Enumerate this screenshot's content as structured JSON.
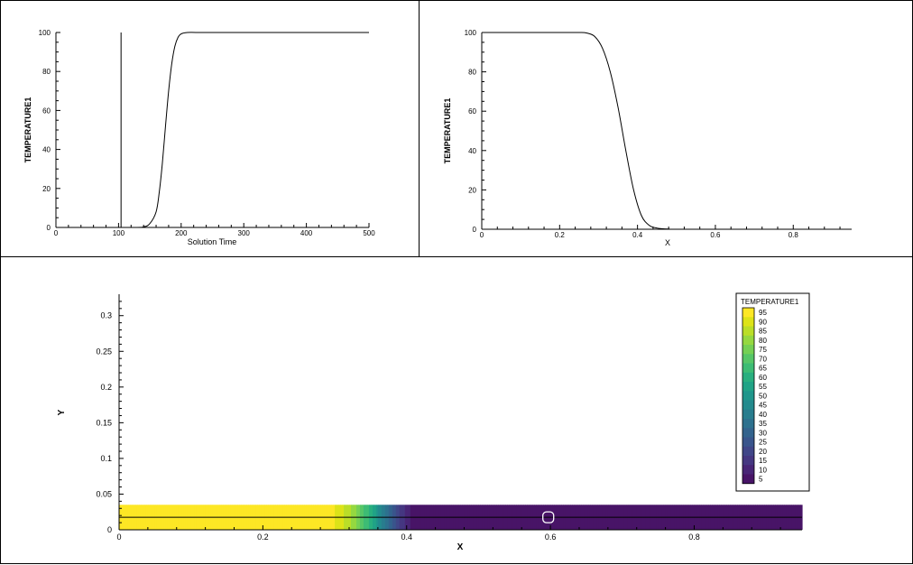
{
  "colors": {
    "line": "#000000",
    "background": "#ffffff"
  },
  "chart_data": [
    {
      "type": "line",
      "xlabel": "Solution Time",
      "ylabel": "TEMPERATURE1",
      "xlim": [
        0,
        500
      ],
      "ylim": [
        0,
        100
      ],
      "xticks": [
        0,
        100,
        200,
        300,
        400,
        500
      ],
      "yticks": [
        0,
        20,
        40,
        60,
        80,
        100
      ],
      "grid": false,
      "marker": {
        "label": "time-marker-line",
        "x": 104
      },
      "series": [
        {
          "x": [
            0,
            120,
            140,
            150,
            160,
            165,
            170,
            175,
            180,
            185,
            190,
            195,
            200,
            210,
            230,
            300,
            400,
            500
          ],
          "y": [
            0,
            0,
            0.3,
            2,
            8,
            18,
            33,
            52,
            70,
            84,
            93,
            97.5,
            99.3,
            100,
            100,
            100,
            100,
            100
          ]
        }
      ]
    },
    {
      "type": "line",
      "xlabel": "X",
      "ylabel": "TEMPERATURE1",
      "xlim": [
        0,
        0.95
      ],
      "ylim": [
        0,
        100
      ],
      "xticks": [
        0,
        0.2,
        0.4,
        0.6,
        0.8
      ],
      "xtick_labels": [
        "0",
        "0.2",
        "0.4",
        "0.6",
        "0.8"
      ],
      "yticks": [
        0,
        20,
        40,
        60,
        80,
        100
      ],
      "grid": false,
      "series": [
        {
          "x": [
            0,
            0.2,
            0.25,
            0.27,
            0.29,
            0.31,
            0.33,
            0.35,
            0.37,
            0.39,
            0.41,
            0.43,
            0.45,
            0.48,
            0.52,
            0.95
          ],
          "y": [
            100,
            100,
            100,
            99.7,
            98,
            92,
            80,
            62,
            40,
            20,
            7,
            2,
            0.6,
            0.1,
            0,
            0
          ]
        }
      ]
    },
    {
      "type": "heatmap",
      "xlabel": "X",
      "ylabel": "Y",
      "xlim": [
        0,
        0.95
      ],
      "ylim": [
        0,
        0.33
      ],
      "xticks": [
        0,
        0.2,
        0.4,
        0.6,
        0.8
      ],
      "xtick_labels": [
        "0",
        "0.2",
        "0.4",
        "0.6",
        "0.8"
      ],
      "yticks": [
        0,
        0.05,
        0.1,
        0.15,
        0.2,
        0.25,
        0.3
      ],
      "ytick_labels": [
        "0",
        "0.05",
        "0.1",
        "0.15",
        "0.2",
        "0.25",
        "0.3"
      ],
      "domain": {
        "x": [
          0,
          0.95
        ],
        "y": [
          0,
          0.035
        ]
      },
      "centerline_y": 0.0175,
      "probe_point": {
        "x": 0.597,
        "y": 0.0175
      },
      "temperature_profile": {
        "x": [
          0,
          0.2,
          0.25,
          0.27,
          0.29,
          0.31,
          0.33,
          0.35,
          0.37,
          0.39,
          0.41,
          0.43,
          0.45,
          0.48,
          0.52,
          0.95
        ],
        "t": [
          100,
          100,
          100,
          99.7,
          98,
          92,
          80,
          62,
          40,
          20,
          7,
          2,
          0.6,
          0.1,
          0,
          0
        ]
      },
      "legend": {
        "title": "TEMPERATURE1",
        "placement": "top-right",
        "levels": [
          "95",
          "90",
          "85",
          "80",
          "75",
          "70",
          "65",
          "60",
          "55",
          "50",
          "45",
          "40",
          "35",
          "30",
          "25",
          "20",
          "15",
          "10",
          "5"
        ],
        "colors": [
          "#fde725",
          "#dde318",
          "#bade28",
          "#95d840",
          "#75d054",
          "#56c667",
          "#3dbc74",
          "#29af7f",
          "#20a386",
          "#1f968b",
          "#238a8d",
          "#287d8e",
          "#2d718e",
          "#33638d",
          "#39558c",
          "#404688",
          "#453781",
          "#482576",
          "#481467"
        ]
      }
    }
  ]
}
